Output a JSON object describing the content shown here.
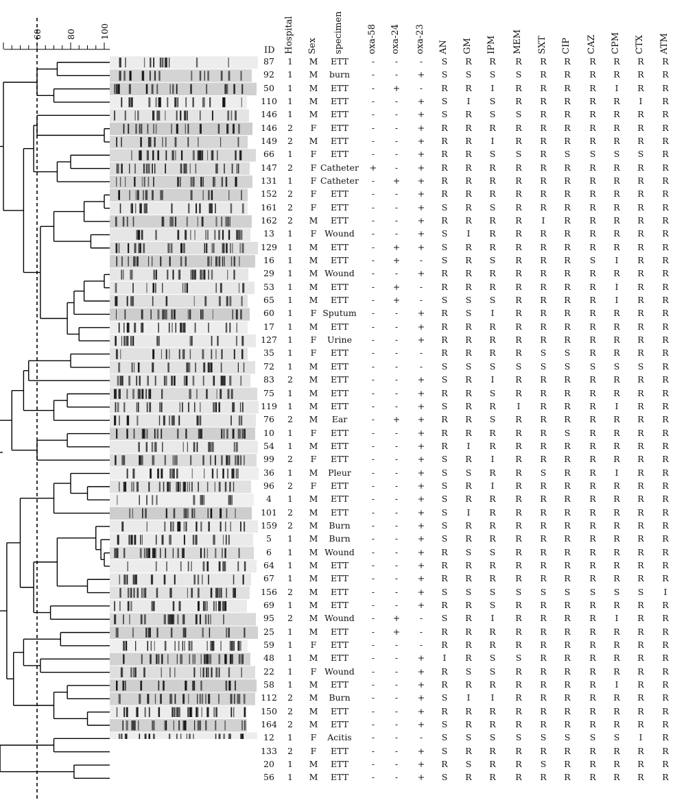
{
  "dendrogram": {
    "scale_ticks": [
      "60",
      "80",
      "100"
    ],
    "cutoff_value": 60
  },
  "table": {
    "columns": [
      {
        "key": "id",
        "label": "ID"
      },
      {
        "key": "hospital",
        "label": "Hospital"
      },
      {
        "key": "sex",
        "label": "Sex"
      },
      {
        "key": "specimen",
        "label": "specimen"
      },
      {
        "key": "oxa58",
        "label": "oxa-58"
      },
      {
        "key": "oxa24",
        "label": "oxa-24"
      },
      {
        "key": "oxa23",
        "label": "oxa-23"
      },
      {
        "key": "an",
        "label": "AN"
      },
      {
        "key": "gm",
        "label": "GM"
      },
      {
        "key": "ipm",
        "label": "IPM"
      },
      {
        "key": "mem",
        "label": "MEM"
      },
      {
        "key": "sxt",
        "label": "SXT"
      },
      {
        "key": "cip",
        "label": "CIP"
      },
      {
        "key": "caz",
        "label": "CAZ"
      },
      {
        "key": "cpm",
        "label": "CPM"
      },
      {
        "key": "ctx",
        "label": "CTX"
      },
      {
        "key": "atm",
        "label": "ATM"
      }
    ],
    "rows": [
      [
        "87",
        "1",
        "M",
        "ETT",
        "-",
        "-",
        "-",
        "S",
        "R",
        "R",
        "R",
        "R",
        "R",
        "R",
        "R",
        "R",
        "R"
      ],
      [
        "92",
        "1",
        "M",
        "burn",
        "-",
        "-",
        "+",
        "S",
        "S",
        "S",
        "S",
        "R",
        "R",
        "R",
        "R",
        "R",
        "R"
      ],
      [
        "50",
        "1",
        "M",
        "ETT",
        "-",
        "+",
        "-",
        "R",
        "R",
        "I",
        "R",
        "R",
        "R",
        "R",
        "I",
        "R",
        "R"
      ],
      [
        "110",
        "1",
        "M",
        "ETT",
        "-",
        "-",
        "+",
        "S",
        "I",
        "S",
        "R",
        "R",
        "R",
        "R",
        "R",
        "I",
        "R"
      ],
      [
        "146",
        "1",
        "M",
        "ETT",
        "-",
        "-",
        "+",
        "S",
        "R",
        "S",
        "S",
        "R",
        "R",
        "R",
        "R",
        "R",
        "R"
      ],
      [
        "146",
        "2",
        "F",
        "ETT",
        "-",
        "-",
        "+",
        "R",
        "R",
        "R",
        "R",
        "R",
        "R",
        "R",
        "R",
        "R",
        "R"
      ],
      [
        "149",
        "2",
        "M",
        "ETT",
        "-",
        "-",
        "+",
        "R",
        "R",
        "I",
        "R",
        "R",
        "R",
        "R",
        "R",
        "R",
        "R"
      ],
      [
        "66",
        "1",
        "F",
        "ETT",
        "-",
        "-",
        "+",
        "R",
        "R",
        "S",
        "S",
        "R",
        "S",
        "S",
        "S",
        "S",
        "R"
      ],
      [
        "147",
        "2",
        "F",
        "Catheter",
        "+",
        "-",
        "+",
        "R",
        "R",
        "R",
        "R",
        "R",
        "R",
        "R",
        "R",
        "R",
        "R"
      ],
      [
        "131",
        "1",
        "F",
        "Catheter",
        "-",
        "+",
        "+",
        "R",
        "R",
        "R",
        "R",
        "R",
        "R",
        "R",
        "R",
        "R",
        "R"
      ],
      [
        "152",
        "2",
        "F",
        "ETT",
        "-",
        "-",
        "+",
        "R",
        "R",
        "R",
        "R",
        "R",
        "R",
        "R",
        "R",
        "R",
        "R"
      ],
      [
        "161",
        "2",
        "F",
        "ETT",
        "-",
        "-",
        "+",
        "S",
        "R",
        "S",
        "R",
        "R",
        "R",
        "R",
        "R",
        "R",
        "R"
      ],
      [
        "162",
        "2",
        "M",
        "ETT",
        "-",
        "-",
        "+",
        "R",
        "R",
        "R",
        "R",
        "I",
        "R",
        "R",
        "R",
        "R",
        "R"
      ],
      [
        "13",
        "1",
        "F",
        "Wound",
        "-",
        "-",
        "+",
        "S",
        "I",
        "R",
        "R",
        "R",
        "R",
        "R",
        "R",
        "R",
        "R"
      ],
      [
        "129",
        "1",
        "M",
        "ETT",
        "-",
        "+",
        "+",
        "S",
        "R",
        "R",
        "R",
        "R",
        "R",
        "R",
        "R",
        "R",
        "R"
      ],
      [
        "16",
        "1",
        "M",
        "ETT",
        "-",
        "+",
        "-",
        "S",
        "R",
        "S",
        "R",
        "R",
        "R",
        "S",
        "I",
        "R",
        "R"
      ],
      [
        "29",
        "1",
        "M",
        "Wound",
        "-",
        "-",
        "+",
        "R",
        "R",
        "R",
        "R",
        "R",
        "R",
        "R",
        "R",
        "R",
        "R"
      ],
      [
        "53",
        "1",
        "M",
        "ETT",
        "-",
        "+",
        "-",
        "R",
        "R",
        "R",
        "R",
        "R",
        "R",
        "R",
        "I",
        "R",
        "R"
      ],
      [
        "65",
        "1",
        "M",
        "ETT",
        "-",
        "+",
        "-",
        "S",
        "S",
        "S",
        "R",
        "R",
        "R",
        "R",
        "I",
        "R",
        "R"
      ],
      [
        "60",
        "1",
        "F",
        "Sputum",
        "-",
        "-",
        "+",
        "R",
        "S",
        "I",
        "R",
        "R",
        "R",
        "R",
        "R",
        "R",
        "R"
      ],
      [
        "17",
        "1",
        "M",
        "ETT",
        "-",
        "-",
        "+",
        "R",
        "R",
        "R",
        "R",
        "R",
        "R",
        "R",
        "R",
        "R",
        "R"
      ],
      [
        "127",
        "1",
        "F",
        "Urine",
        "-",
        "-",
        "+",
        "R",
        "R",
        "R",
        "R",
        "R",
        "R",
        "R",
        "R",
        "R",
        "R"
      ],
      [
        "35",
        "1",
        "F",
        "ETT",
        "-",
        "-",
        "-",
        "R",
        "R",
        "R",
        "R",
        "S",
        "S",
        "R",
        "R",
        "R",
        "R"
      ],
      [
        "72",
        "1",
        "M",
        "ETT",
        "-",
        "-",
        "-",
        "S",
        "S",
        "S",
        "S",
        "S",
        "S",
        "S",
        "S",
        "S",
        "R"
      ],
      [
        "83",
        "2",
        "M",
        "ETT",
        "-",
        "-",
        "+",
        "S",
        "R",
        "I",
        "R",
        "R",
        "R",
        "R",
        "R",
        "R",
        "R"
      ],
      [
        "75",
        "1",
        "M",
        "ETT",
        "-",
        "-",
        "+",
        "R",
        "R",
        "S",
        "R",
        "R",
        "R",
        "R",
        "R",
        "R",
        "R"
      ],
      [
        "119",
        "1",
        "M",
        "ETT",
        "-",
        "-",
        "+",
        "S",
        "R",
        "R",
        "I",
        "R",
        "R",
        "R",
        "I",
        "R",
        "R"
      ],
      [
        "76",
        "2",
        "M",
        "Ear",
        "-",
        "+",
        "+",
        "R",
        "R",
        "S",
        "R",
        "R",
        "R",
        "R",
        "R",
        "R",
        "R"
      ],
      [
        "10",
        "1",
        "F",
        "ETT",
        "-",
        "-",
        "+",
        "R",
        "R",
        "R",
        "R",
        "R",
        "S",
        "R",
        "R",
        "R",
        "R"
      ],
      [
        "54",
        "1",
        "M",
        "ETT",
        "-",
        "-",
        "+",
        "R",
        "I",
        "R",
        "R",
        "R",
        "R",
        "R",
        "R",
        "R",
        "R"
      ],
      [
        "99",
        "2",
        "F",
        "ETT",
        "-",
        "-",
        "+",
        "S",
        "R",
        "I",
        "R",
        "R",
        "R",
        "R",
        "R",
        "R",
        "R"
      ],
      [
        "36",
        "1",
        "M",
        "Pleur",
        "-",
        "-",
        "+",
        "S",
        "S",
        "R",
        "R",
        "S",
        "R",
        "R",
        "I",
        "R",
        "R"
      ],
      [
        "96",
        "2",
        "F",
        "ETT",
        "-",
        "-",
        "+",
        "S",
        "R",
        "I",
        "R",
        "R",
        "R",
        "R",
        "R",
        "R",
        "R"
      ],
      [
        "4",
        "1",
        "M",
        "ETT",
        "-",
        "-",
        "+",
        "S",
        "R",
        "R",
        "R",
        "R",
        "R",
        "R",
        "R",
        "R",
        "R"
      ],
      [
        "101",
        "2",
        "M",
        "ETT",
        "-",
        "-",
        "+",
        "S",
        "I",
        "R",
        "R",
        "R",
        "R",
        "R",
        "R",
        "R",
        "R"
      ],
      [
        "159",
        "2",
        "M",
        "Burn",
        "-",
        "-",
        "+",
        "S",
        "R",
        "R",
        "R",
        "R",
        "R",
        "R",
        "R",
        "R",
        "R"
      ],
      [
        "5",
        "1",
        "M",
        "Burn",
        "-",
        "-",
        "+",
        "S",
        "R",
        "R",
        "R",
        "R",
        "R",
        "R",
        "R",
        "R",
        "R"
      ],
      [
        "6",
        "1",
        "M",
        "Wound",
        "-",
        "-",
        "+",
        "R",
        "S",
        "S",
        "R",
        "R",
        "R",
        "R",
        "R",
        "R",
        "R"
      ],
      [
        "64",
        "1",
        "M",
        "ETT",
        "-",
        "-",
        "+",
        "R",
        "R",
        "R",
        "R",
        "R",
        "R",
        "R",
        "R",
        "R",
        "R"
      ],
      [
        "67",
        "1",
        "M",
        "ETT",
        "-",
        "-",
        "+",
        "R",
        "R",
        "R",
        "R",
        "R",
        "R",
        "R",
        "R",
        "R",
        "R"
      ],
      [
        "156",
        "2",
        "M",
        "ETT",
        "-",
        "-",
        "+",
        "S",
        "S",
        "S",
        "S",
        "S",
        "S",
        "S",
        "S",
        "S",
        "I"
      ],
      [
        "69",
        "1",
        "M",
        "ETT",
        "-",
        "-",
        "+",
        "R",
        "R",
        "S",
        "R",
        "R",
        "R",
        "R",
        "R",
        "R",
        "R"
      ],
      [
        "95",
        "2",
        "M",
        "Wound",
        "-",
        "+",
        "-",
        "S",
        "R",
        "I",
        "R",
        "R",
        "R",
        "R",
        "I",
        "R",
        "R"
      ],
      [
        "25",
        "1",
        "M",
        "ETT",
        "-",
        "+",
        "-",
        "R",
        "R",
        "R",
        "R",
        "R",
        "R",
        "R",
        "R",
        "R",
        "R"
      ],
      [
        "59",
        "1",
        "F",
        "ETT",
        "-",
        "-",
        "-",
        "R",
        "R",
        "R",
        "R",
        "R",
        "R",
        "R",
        "R",
        "R",
        "R"
      ],
      [
        "48",
        "1",
        "M",
        "ETT",
        "-",
        "-",
        "+",
        "I",
        "R",
        "S",
        "S",
        "R",
        "R",
        "R",
        "R",
        "R",
        "R"
      ],
      [
        "22",
        "1",
        "F",
        "Wound",
        "-",
        "-",
        "+",
        "R",
        "S",
        "S",
        "R",
        "R",
        "R",
        "R",
        "R",
        "R",
        "R"
      ],
      [
        "58",
        "1",
        "M",
        "ETT",
        "-",
        "-",
        "+",
        "R",
        "R",
        "R",
        "R",
        "R",
        "R",
        "R",
        "I",
        "R",
        "R"
      ],
      [
        "112",
        "2",
        "M",
        "Burn",
        "-",
        "-",
        "+",
        "S",
        "I",
        "I",
        "R",
        "R",
        "R",
        "R",
        "R",
        "R",
        "R"
      ],
      [
        "150",
        "2",
        "M",
        "ETT",
        "-",
        "-",
        "+",
        "R",
        "R",
        "R",
        "R",
        "R",
        "R",
        "R",
        "R",
        "R",
        "R"
      ],
      [
        "164",
        "2",
        "M",
        "ETT",
        "-",
        "-",
        "+",
        "S",
        "R",
        "R",
        "R",
        "R",
        "R",
        "R",
        "R",
        "R",
        "R"
      ],
      [
        "12",
        "1",
        "F",
        "Acitis",
        "-",
        "-",
        "-",
        "S",
        "S",
        "S",
        "S",
        "S",
        "S",
        "S",
        "S",
        "I",
        "R"
      ],
      [
        "133",
        "2",
        "F",
        "ETT",
        "-",
        "-",
        "+",
        "S",
        "R",
        "R",
        "R",
        "R",
        "R",
        "R",
        "R",
        "R",
        "R"
      ],
      [
        "20",
        "1",
        "M",
        "ETT",
        "-",
        "-",
        "+",
        "R",
        "S",
        "R",
        "R",
        "S",
        "R",
        "R",
        "R",
        "R",
        "R"
      ],
      [
        "56",
        "1",
        "M",
        "ETT",
        "-",
        "-",
        "+",
        "S",
        "R",
        "R",
        "R",
        "R",
        "R",
        "R",
        "R",
        "R",
        "R"
      ]
    ]
  }
}
